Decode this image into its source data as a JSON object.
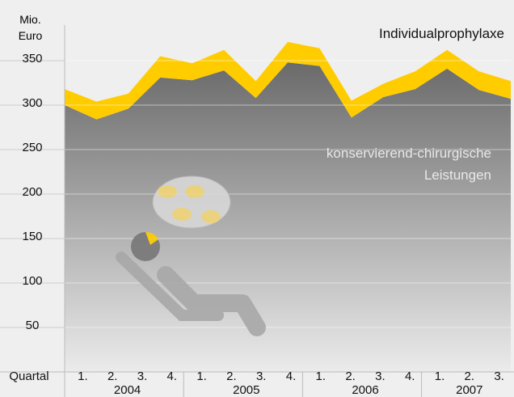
{
  "chart_data": {
    "type": "stacked_area",
    "ylabel": [
      "Mio.",
      "Euro"
    ],
    "xlabel": "Quartal",
    "categories": [
      "1.",
      "2.",
      "3.",
      "4.",
      "1.",
      "2.",
      "3.",
      "4.",
      "1.",
      "2.",
      "3.",
      "4.",
      "1.",
      "2.",
      "3."
    ],
    "years": [
      "2004",
      "2005",
      "2006",
      "2007"
    ],
    "series": [
      {
        "name": "konservierend-chirurgische Leistungen",
        "color": "#6e6e6e",
        "values": [
          300,
          284,
          296,
          331,
          328,
          339,
          308,
          348,
          344,
          286,
          309,
          318,
          341,
          317,
          307
        ]
      },
      {
        "name": "Individualprophylaxe",
        "color": "#ffcc00",
        "values": [
          18,
          20,
          17,
          24,
          19,
          23,
          19,
          23,
          20,
          19,
          15,
          20,
          21,
          21,
          20
        ]
      }
    ],
    "ylim": [
      0,
      390
    ],
    "yticks": [
      50,
      100,
      150,
      200,
      250,
      300,
      350
    ],
    "grid": true
  }
}
